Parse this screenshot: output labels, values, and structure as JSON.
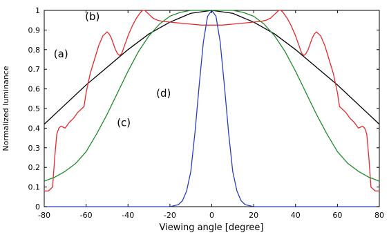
{
  "chart_data": {
    "type": "line",
    "title": "",
    "xlabel": "Viewing angle [degree]",
    "ylabel": "Normalized luminance",
    "xlim": [
      -80,
      80
    ],
    "ylim": [
      0,
      1
    ],
    "xticks": [
      "-80",
      "-60",
      "-40",
      "-20",
      "0",
      "20",
      "40",
      "60",
      "80"
    ],
    "yticks": [
      "0",
      "0.1",
      "0.2",
      "0.3",
      "0.4",
      "0.5",
      "0.6",
      "0.7",
      "0.8",
      "0.9",
      "1"
    ],
    "grid": false,
    "annotations": [
      {
        "text": "(a)",
        "x": -72,
        "y": 0.76
      },
      {
        "text": "(b)",
        "x": -57,
        "y": 0.95
      },
      {
        "text": "(c)",
        "x": -42,
        "y": 0.41
      },
      {
        "text": "(d)",
        "x": -23,
        "y": 0.56
      }
    ],
    "series": [
      {
        "color": "#000000",
        "x": [
          -80,
          -70,
          -60,
          -50,
          -40,
          -30,
          -20,
          -10,
          0,
          10,
          20,
          30,
          40,
          50,
          60,
          70,
          80
        ],
        "y": [
          0.42,
          0.52,
          0.62,
          0.71,
          0.8,
          0.88,
          0.94,
          0.985,
          1.0,
          0.985,
          0.94,
          0.88,
          0.8,
          0.71,
          0.62,
          0.52,
          0.42
        ]
      },
      {
        "color": "#e8262a",
        "x": [
          -80,
          -78,
          -76,
          -75,
          -74,
          -73,
          -72,
          -70,
          -68,
          -66,
          -64,
          -62,
          -61,
          -60,
          -58,
          -56,
          -54,
          -52,
          -51,
          -50,
          -49,
          -48,
          -47,
          -46,
          -45,
          -44,
          -43,
          -42,
          -40,
          -38,
          -36,
          -34,
          -33,
          -32,
          -31,
          -30,
          -28,
          -26,
          -24,
          -20,
          -15,
          -10,
          -5,
          0,
          5,
          10,
          15,
          20,
          24,
          26,
          28,
          30,
          31,
          32,
          33,
          34,
          36,
          38,
          40,
          42,
          43,
          44,
          45,
          46,
          47,
          48,
          49,
          50,
          51,
          52,
          54,
          56,
          58,
          60,
          61,
          62,
          64,
          66,
          68,
          70,
          72,
          73,
          74,
          75,
          76,
          78,
          80
        ],
        "y": [
          0.08,
          0.08,
          0.1,
          0.25,
          0.37,
          0.4,
          0.41,
          0.4,
          0.43,
          0.45,
          0.48,
          0.5,
          0.51,
          0.58,
          0.68,
          0.75,
          0.82,
          0.87,
          0.88,
          0.89,
          0.88,
          0.86,
          0.83,
          0.8,
          0.78,
          0.77,
          0.78,
          0.81,
          0.87,
          0.92,
          0.96,
          0.99,
          1.0,
          1.0,
          0.99,
          0.98,
          0.96,
          0.95,
          0.945,
          0.94,
          0.935,
          0.93,
          0.925,
          0.925,
          0.925,
          0.93,
          0.935,
          0.94,
          0.945,
          0.95,
          0.96,
          0.98,
          0.99,
          1.0,
          1.0,
          0.99,
          0.96,
          0.92,
          0.87,
          0.81,
          0.78,
          0.77,
          0.78,
          0.8,
          0.83,
          0.86,
          0.88,
          0.89,
          0.88,
          0.87,
          0.82,
          0.75,
          0.68,
          0.58,
          0.51,
          0.5,
          0.48,
          0.45,
          0.43,
          0.4,
          0.41,
          0.4,
          0.37,
          0.25,
          0.1,
          0.08,
          0.08
        ]
      },
      {
        "color": "#1f8a2b",
        "x": [
          -80,
          -75,
          -70,
          -65,
          -60,
          -55,
          -50,
          -45,
          -40,
          -35,
          -30,
          -25,
          -20,
          -15,
          -10,
          -5,
          0,
          5,
          10,
          15,
          20,
          25,
          30,
          35,
          40,
          45,
          50,
          55,
          60,
          65,
          70,
          75,
          80
        ],
        "y": [
          0.13,
          0.15,
          0.18,
          0.22,
          0.28,
          0.37,
          0.47,
          0.58,
          0.69,
          0.79,
          0.87,
          0.93,
          0.97,
          0.99,
          1.0,
          1.0,
          1.0,
          1.0,
          1.0,
          0.99,
          0.97,
          0.93,
          0.87,
          0.79,
          0.69,
          0.58,
          0.47,
          0.37,
          0.28,
          0.22,
          0.18,
          0.15,
          0.13
        ]
      },
      {
        "color": "#2b3dbf",
        "x": [
          -80,
          -20,
          -16,
          -14,
          -12,
          -10,
          -8,
          -6,
          -4,
          -2,
          0,
          2,
          4,
          6,
          8,
          10,
          12,
          14,
          16,
          20,
          80
        ],
        "y": [
          0.0,
          0.0,
          0.01,
          0.03,
          0.08,
          0.18,
          0.38,
          0.62,
          0.84,
          0.97,
          1.0,
          0.97,
          0.84,
          0.62,
          0.38,
          0.18,
          0.08,
          0.03,
          0.01,
          0.0,
          0.0
        ]
      }
    ]
  }
}
